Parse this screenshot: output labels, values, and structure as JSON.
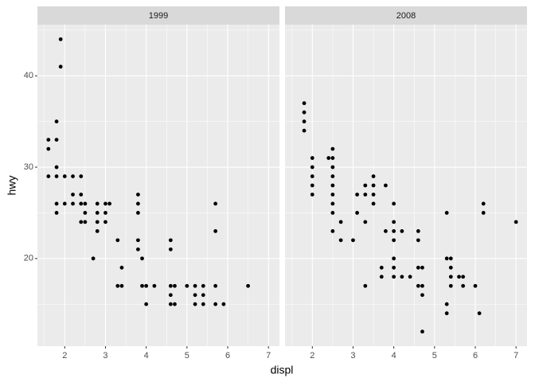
{
  "axis_labels": {
    "x": "displ",
    "y": "hwy"
  },
  "chart_data": [
    {
      "type": "scatter",
      "title": "1999",
      "x": [
        1.9,
        1.9,
        1.8,
        1.6,
        1.8,
        1.6,
        1.6,
        1.8,
        1.8,
        2.0,
        1.8,
        1.8,
        2.0,
        2.2,
        2.2,
        2.2,
        2.4,
        2.4,
        2.4,
        2.4,
        2.5,
        2.5,
        2.5,
        2.8,
        2.8,
        2.8,
        2.8,
        2.7,
        3.0,
        3.1,
        3.0,
        3.0,
        3.3,
        3.3,
        3.4,
        3.4,
        3.8,
        3.8,
        3.8,
        3.8,
        3.8,
        3.9,
        3.9,
        4.0,
        4.0,
        4.2,
        4.6,
        4.6,
        4.6,
        4.6,
        4.6,
        4.7,
        4.7,
        5.0,
        5.2,
        5.2,
        5.2,
        5.4,
        5.4,
        5.4,
        5.7,
        5.7,
        5.7,
        5.7,
        5.9,
        6.5
      ],
      "y": [
        44,
        41,
        35,
        33,
        33,
        32,
        29,
        30,
        29,
        29,
        26,
        25,
        26,
        29,
        27,
        26,
        29,
        27,
        26,
        24,
        26,
        25,
        24,
        26,
        25,
        24,
        23,
        20,
        26,
        26,
        25,
        24,
        22,
        17,
        19,
        17,
        27,
        26,
        25,
        22,
        21,
        20,
        17,
        17,
        15,
        17,
        22,
        21,
        17,
        16,
        15,
        17,
        15,
        17,
        17,
        16,
        15,
        17,
        16,
        15,
        26,
        23,
        17,
        15,
        15,
        17
      ],
      "color": "#000000",
      "xlim": [
        1.33,
        7.27
      ],
      "xticks": [
        2,
        3,
        4,
        5,
        6,
        7
      ],
      "ylim": [
        10.4,
        45.6
      ],
      "yticks": [
        20,
        30,
        40
      ]
    },
    {
      "type": "scatter",
      "title": "2008",
      "x": [
        1.8,
        1.8,
        1.8,
        1.8,
        2.0,
        2.0,
        2.0,
        2.0,
        2.0,
        2.4,
        2.5,
        2.5,
        2.5,
        2.5,
        2.5,
        2.5,
        2.5,
        2.5,
        2.5,
        2.7,
        2.7,
        3.0,
        3.1,
        3.1,
        3.3,
        3.3,
        3.3,
        3.3,
        3.5,
        3.5,
        3.5,
        3.5,
        3.7,
        3.7,
        3.8,
        3.8,
        4.0,
        4.0,
        4.0,
        4.0,
        4.0,
        4.0,
        4.0,
        4.2,
        4.2,
        4.4,
        4.6,
        4.6,
        4.6,
        4.6,
        4.7,
        4.7,
        4.7,
        4.7,
        5.3,
        5.3,
        5.3,
        5.3,
        5.4,
        5.4,
        5.4,
        5.4,
        5.6,
        5.7,
        5.7,
        6.0,
        6.1,
        6.2,
        6.2,
        7.0
      ],
      "y": [
        37,
        36,
        35,
        34,
        31,
        30,
        29,
        28,
        27,
        31,
        32,
        31,
        30,
        29,
        28,
        27,
        26,
        25,
        23,
        24,
        22,
        22,
        27,
        25,
        28,
        27,
        24,
        17,
        29,
        28,
        27,
        26,
        19,
        18,
        28,
        23,
        26,
        24,
        23,
        22,
        20,
        19,
        18,
        23,
        18,
        18,
        23,
        22,
        19,
        17,
        19,
        17,
        16,
        12,
        25,
        20,
        15,
        14,
        20,
        19,
        18,
        17,
        18,
        18,
        17,
        17,
        14,
        26,
        25,
        24
      ],
      "color": "#000000",
      "xlim": [
        1.33,
        7.27
      ],
      "xticks": [
        2,
        3,
        4,
        5,
        6,
        7
      ],
      "ylim": [
        10.4,
        45.6
      ],
      "yticks": [
        20,
        30,
        40
      ]
    }
  ]
}
